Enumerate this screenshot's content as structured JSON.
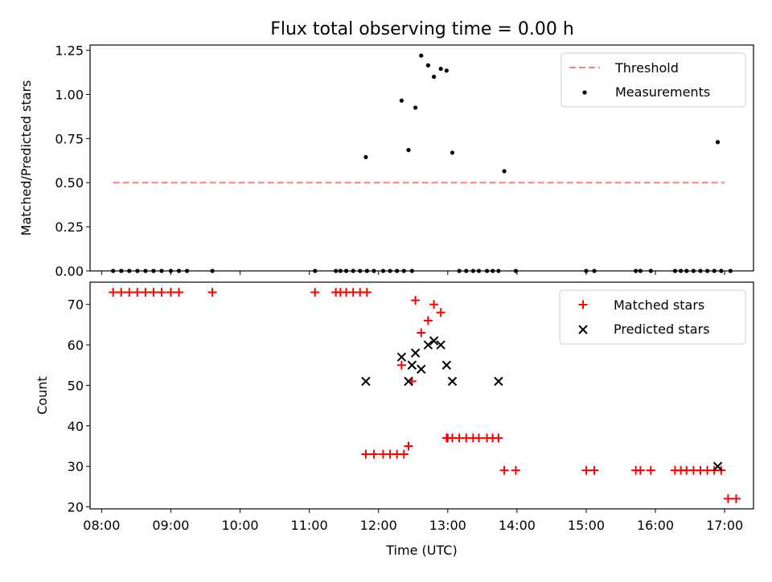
{
  "title": "Flux total observing time = 0.00 h",
  "chart_data": [
    {
      "type": "scatter",
      "ylabel": "Matched/Predicted stars",
      "ylim": [
        0,
        1.28
      ],
      "yticks": [
        0,
        0.25,
        0.5,
        0.75,
        1.0,
        1.25
      ],
      "ytick_labels": [
        "0.00",
        "0.25",
        "0.50",
        "0.75",
        "1.00",
        "1.25"
      ],
      "legend_position": "top-right",
      "series": [
        {
          "name": "Threshold",
          "kind": "line",
          "style": "dashed",
          "color": "#ff7f7f",
          "x": [
            "08:10",
            "17:00"
          ],
          "y": [
            0.5,
            0.5
          ]
        },
        {
          "name": "Measurements",
          "kind": "scatter",
          "marker": "dot",
          "color": "#000000",
          "x": [
            "08:10",
            "08:17",
            "08:24",
            "08:31",
            "08:38",
            "08:45",
            "08:52",
            "09:00",
            "09:07",
            "09:14",
            "09:36",
            "11:05",
            "11:23",
            "11:27",
            "11:32",
            "11:38",
            "11:44",
            "11:50",
            "11:56",
            "12:04",
            "12:10",
            "12:16",
            "12:22",
            "12:29",
            "11:49",
            "12:20",
            "12:26",
            "12:32",
            "12:37",
            "12:43",
            "12:48",
            "12:54",
            "12:59",
            "13:04",
            "13:10",
            "13:16",
            "13:22",
            "13:27",
            "13:34",
            "13:39",
            "13:44",
            "13:49",
            "13:59",
            "15:00",
            "15:07",
            "15:43",
            "15:47",
            "15:56",
            "16:17",
            "16:22",
            "16:27",
            "16:33",
            "16:39",
            "16:45",
            "16:51",
            "16:57",
            "17:05",
            "16:54"
          ],
          "y": [
            0,
            0,
            0,
            0,
            0,
            0,
            0,
            0,
            0,
            0,
            0,
            0,
            0,
            0,
            0,
            0,
            0,
            0,
            0,
            0,
            0,
            0,
            0,
            0,
            0.645,
            0.965,
            0.685,
            0.925,
            1.22,
            1.165,
            1.1,
            1.145,
            1.135,
            0.67,
            0,
            0,
            0,
            0,
            0,
            0,
            0,
            0.565,
            0,
            0,
            0,
            0,
            0,
            0,
            0,
            0,
            0,
            0,
            0,
            0,
            0,
            0,
            0,
            0.73
          ]
        }
      ]
    },
    {
      "type": "scatter",
      "xlabel": "Time (UTC)",
      "ylabel": "Count",
      "ylim": [
        19.5,
        75.5
      ],
      "yticks": [
        20,
        30,
        40,
        50,
        60,
        70
      ],
      "ytick_labels": [
        "20",
        "30",
        "40",
        "50",
        "60",
        "70"
      ],
      "xlim": [
        "07:50",
        "17:25"
      ],
      "xticks": [
        "08:00",
        "09:00",
        "10:00",
        "11:00",
        "12:00",
        "13:00",
        "14:00",
        "15:00",
        "16:00",
        "17:00"
      ],
      "legend_position": "top-right",
      "series": [
        {
          "name": "Matched stars",
          "kind": "scatter",
          "marker": "plus",
          "color": "#ff0000",
          "x": [
            "08:10",
            "08:17",
            "08:24",
            "08:31",
            "08:38",
            "08:45",
            "08:52",
            "09:00",
            "09:07",
            "09:36",
            "11:05",
            "11:23",
            "11:27",
            "11:32",
            "11:38",
            "11:44",
            "11:50",
            "11:49",
            "11:56",
            "12:04",
            "12:10",
            "12:16",
            "12:22",
            "12:20",
            "12:26",
            "12:29",
            "12:32",
            "12:37",
            "12:43",
            "12:48",
            "12:54",
            "12:59",
            "13:00",
            "13:04",
            "13:10",
            "13:16",
            "13:22",
            "13:27",
            "13:34",
            "13:39",
            "13:44",
            "13:49",
            "13:59",
            "15:00",
            "15:07",
            "15:43",
            "15:47",
            "15:56",
            "16:17",
            "16:22",
            "16:27",
            "16:33",
            "16:39",
            "16:45",
            "16:51",
            "16:57",
            "17:03",
            "17:10"
          ],
          "y": [
            73,
            73,
            73,
            73,
            73,
            73,
            73,
            73,
            73,
            73,
            73,
            73,
            73,
            73,
            73,
            73,
            73,
            33,
            33,
            33,
            33,
            33,
            33,
            55,
            35,
            51,
            71,
            63,
            66,
            70,
            68,
            37,
            37,
            37,
            37,
            37,
            37,
            37,
            37,
            37,
            37,
            29,
            29,
            29,
            29,
            29,
            29,
            29,
            29,
            29,
            29,
            29,
            29,
            29,
            29,
            29,
            22,
            22
          ]
        },
        {
          "name": "Predicted stars",
          "kind": "scatter",
          "marker": "x",
          "color": "#000000",
          "x": [
            "11:49",
            "12:20",
            "12:26",
            "12:29",
            "12:32",
            "12:37",
            "12:43",
            "12:48",
            "12:54",
            "12:59",
            "13:04",
            "13:44",
            "16:54"
          ],
          "y": [
            51,
            57,
            51,
            55,
            58,
            54,
            60,
            61,
            60,
            55,
            51,
            51,
            30
          ]
        }
      ]
    }
  ]
}
